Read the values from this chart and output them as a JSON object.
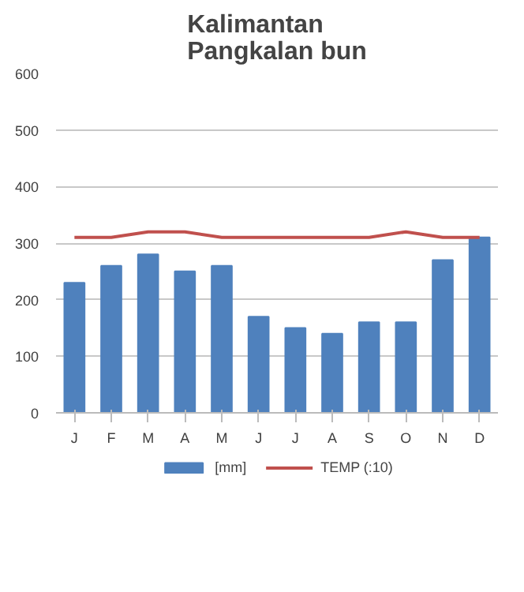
{
  "chart_data": {
    "type": "bar",
    "title": "Kalimantan\nPangkalan bun",
    "categories": [
      "J",
      "F",
      "M",
      "A",
      "M",
      "J",
      "J",
      "A",
      "S",
      "O",
      "N",
      "D"
    ],
    "series": [
      {
        "name": "[mm]",
        "color": "#4f81bd",
        "values": [
          230,
          260,
          280,
          250,
          260,
          170,
          150,
          140,
          160,
          160,
          270,
          310
        ]
      },
      {
        "name": "TEMP (:10)",
        "type": "line",
        "color": "#c0504d",
        "values": [
          310,
          310,
          320,
          320,
          310,
          310,
          310,
          310,
          310,
          320,
          310,
          310
        ]
      }
    ],
    "ylim": [
      0,
      600
    ],
    "yticks": [
      0,
      100,
      200,
      300,
      400,
      500,
      600
    ],
    "grid": "y",
    "legend": "bottom"
  }
}
